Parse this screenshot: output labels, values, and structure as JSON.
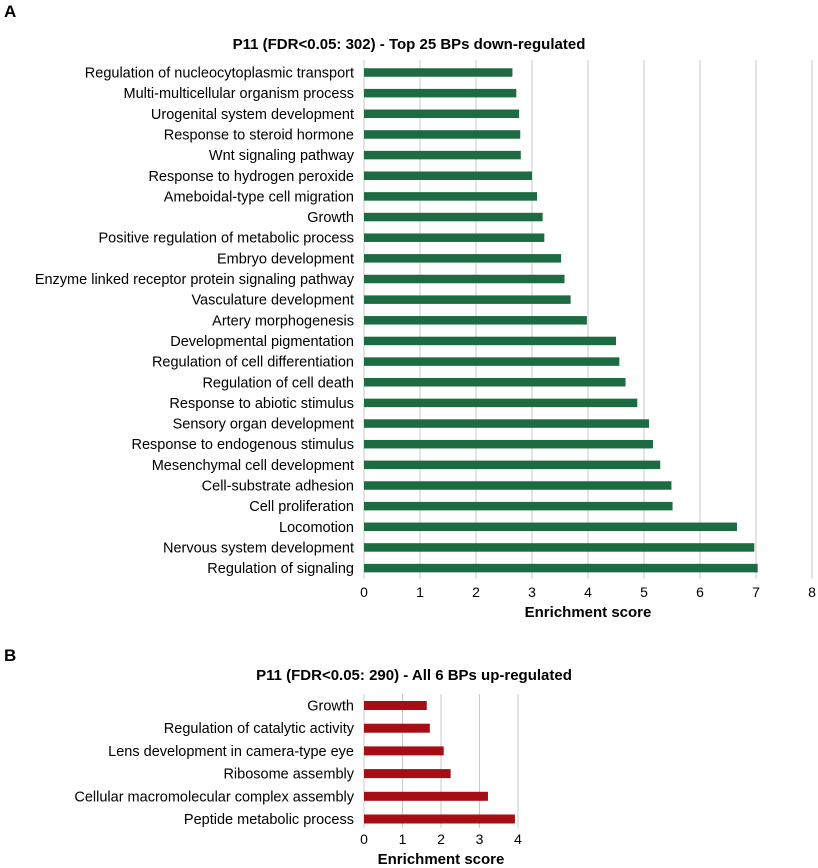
{
  "panels": {
    "a_label": "A",
    "b_label": "B"
  },
  "colors": {
    "down": "#1d6b42",
    "up": "#a50e14",
    "grid": "#c8c8c8"
  },
  "chart_data": [
    {
      "type": "bar",
      "orientation": "horizontal",
      "title": "P11 (FDR<0.05: 302) - Top 25 BPs down-regulated",
      "xlabel": "Enrichment score",
      "ylabel": "",
      "xlim": [
        0,
        8
      ],
      "ticks": [
        0,
        1,
        2,
        3,
        4,
        5,
        6,
        7,
        8
      ],
      "grid": true,
      "categories": [
        "Regulation of nucleocytoplasmic transport",
        "Multi-multicellular organism process",
        "Urogenital system development",
        "Response to steroid hormone",
        "Wnt signaling pathway",
        "Response to hydrogen peroxide",
        "Ameboidal-type cell migration",
        "Growth",
        "Positive regulation of metabolic process",
        "Embryo development",
        "Enzyme linked receptor protein signaling pathway",
        "Vasculature development",
        "Artery morphogenesis",
        "Developmental pigmentation",
        "Regulation of cell differentiation",
        "Regulation of cell death",
        "Response to abiotic stimulus",
        "Sensory organ development",
        "Response to endogenous stimulus",
        "Mesenchymal cell development",
        "Cell-substrate adhesion",
        "Cell proliferation",
        "Locomotion",
        "Nervous system development",
        "Regulation of signaling"
      ],
      "values": [
        2.65,
        2.72,
        2.77,
        2.79,
        2.8,
        3.0,
        3.09,
        3.19,
        3.22,
        3.52,
        3.58,
        3.69,
        3.98,
        4.5,
        4.56,
        4.67,
        4.88,
        5.09,
        5.16,
        5.29,
        5.49,
        5.51,
        6.66,
        6.97,
        7.03
      ]
    },
    {
      "type": "bar",
      "orientation": "horizontal",
      "title": "P11 (FDR<0.05: 290) - All 6 BPs up-regulated",
      "xlabel": "Enrichment score",
      "ylabel": "",
      "xlim": [
        0,
        4
      ],
      "ticks": [
        0,
        1,
        2,
        3,
        4
      ],
      "grid": true,
      "categories": [
        "Growth",
        "Regulation of catalytic activity",
        "Lens development in camera-type eye",
        "Ribosome assembly",
        "Cellular macromolecular complex assembly",
        "Peptide metabolic process"
      ],
      "values": [
        1.63,
        1.71,
        2.07,
        2.25,
        3.22,
        3.92
      ]
    }
  ]
}
